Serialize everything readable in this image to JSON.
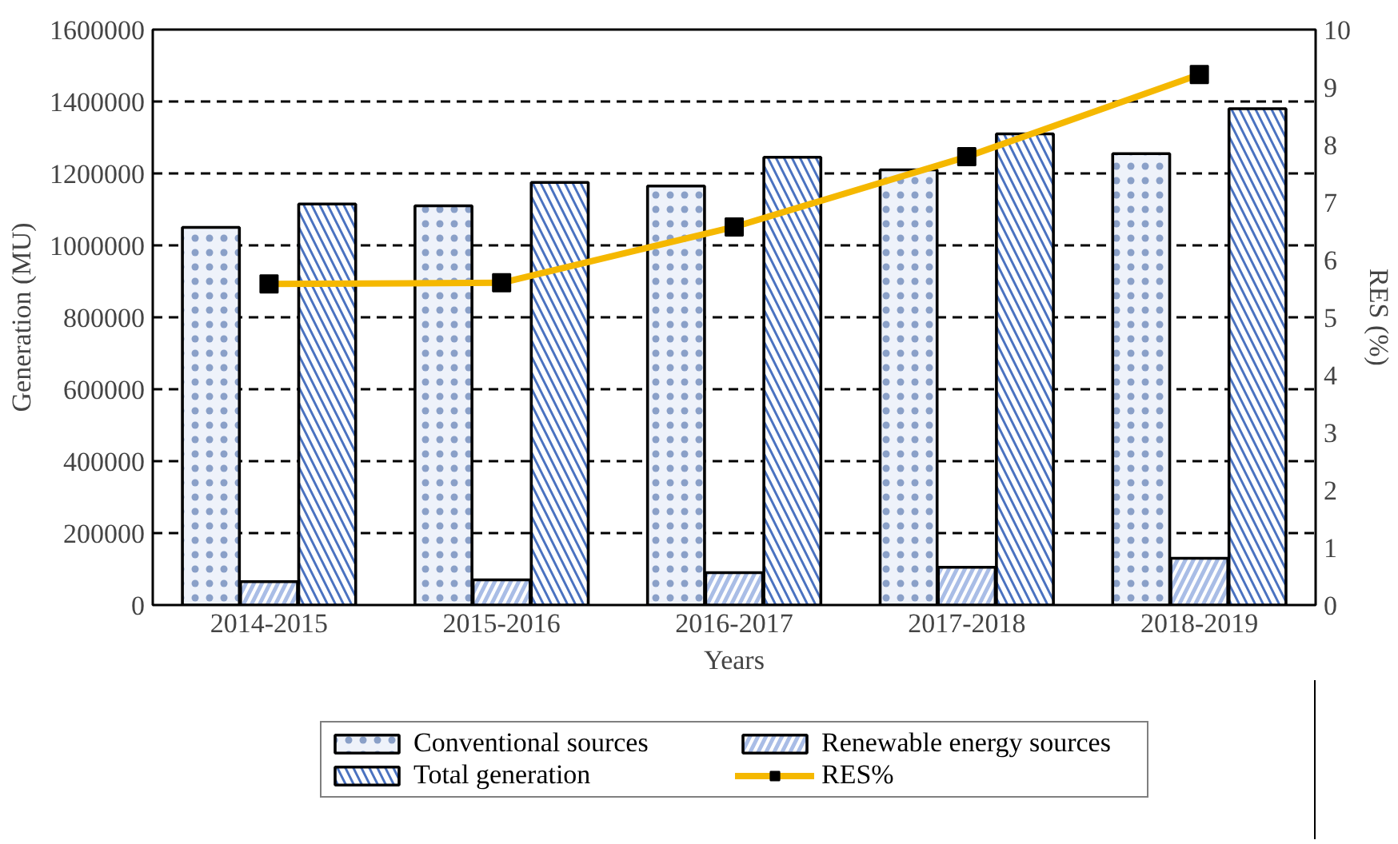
{
  "chart_data": {
    "type": "bar",
    "xlabel": "Years",
    "ylabel": "Generation (MU)",
    "y2label": "RES (%)",
    "categories": [
      "2014-2015",
      "2015-2016",
      "2016-2017",
      "2017-2018",
      "2018-2019"
    ],
    "series": [
      {
        "name": "Conventional sources",
        "color": "#eef2fa",
        "values": [
          1050000,
          1110000,
          1165000,
          1210000,
          1255000
        ]
      },
      {
        "name": "Renewable energy sources",
        "color": "#a9bde6",
        "values": [
          65000,
          70000,
          90000,
          105000,
          130000
        ]
      },
      {
        "name": "Total generation",
        "color": "#4a72c0",
        "values": [
          1115000,
          1175000,
          1245000,
          1310000,
          1380000
        ]
      },
      {
        "name": "RES%",
        "type": "line",
        "axis": "y2",
        "color": "#f5b800",
        "marker": "square",
        "line_style": "solid",
        "values": [
          5.58,
          5.6,
          6.57,
          7.79,
          9.22
        ]
      }
    ],
    "ylim": [
      0,
      1600000
    ],
    "yticks": [
      0,
      200000,
      400000,
      600000,
      800000,
      1000000,
      1200000,
      1400000,
      1600000
    ],
    "y2lim": [
      0,
      10
    ],
    "y2ticks": [
      0,
      1,
      2,
      3,
      4,
      5,
      6,
      7,
      8,
      9,
      10
    ],
    "grid": "y",
    "legend": "bottom"
  }
}
